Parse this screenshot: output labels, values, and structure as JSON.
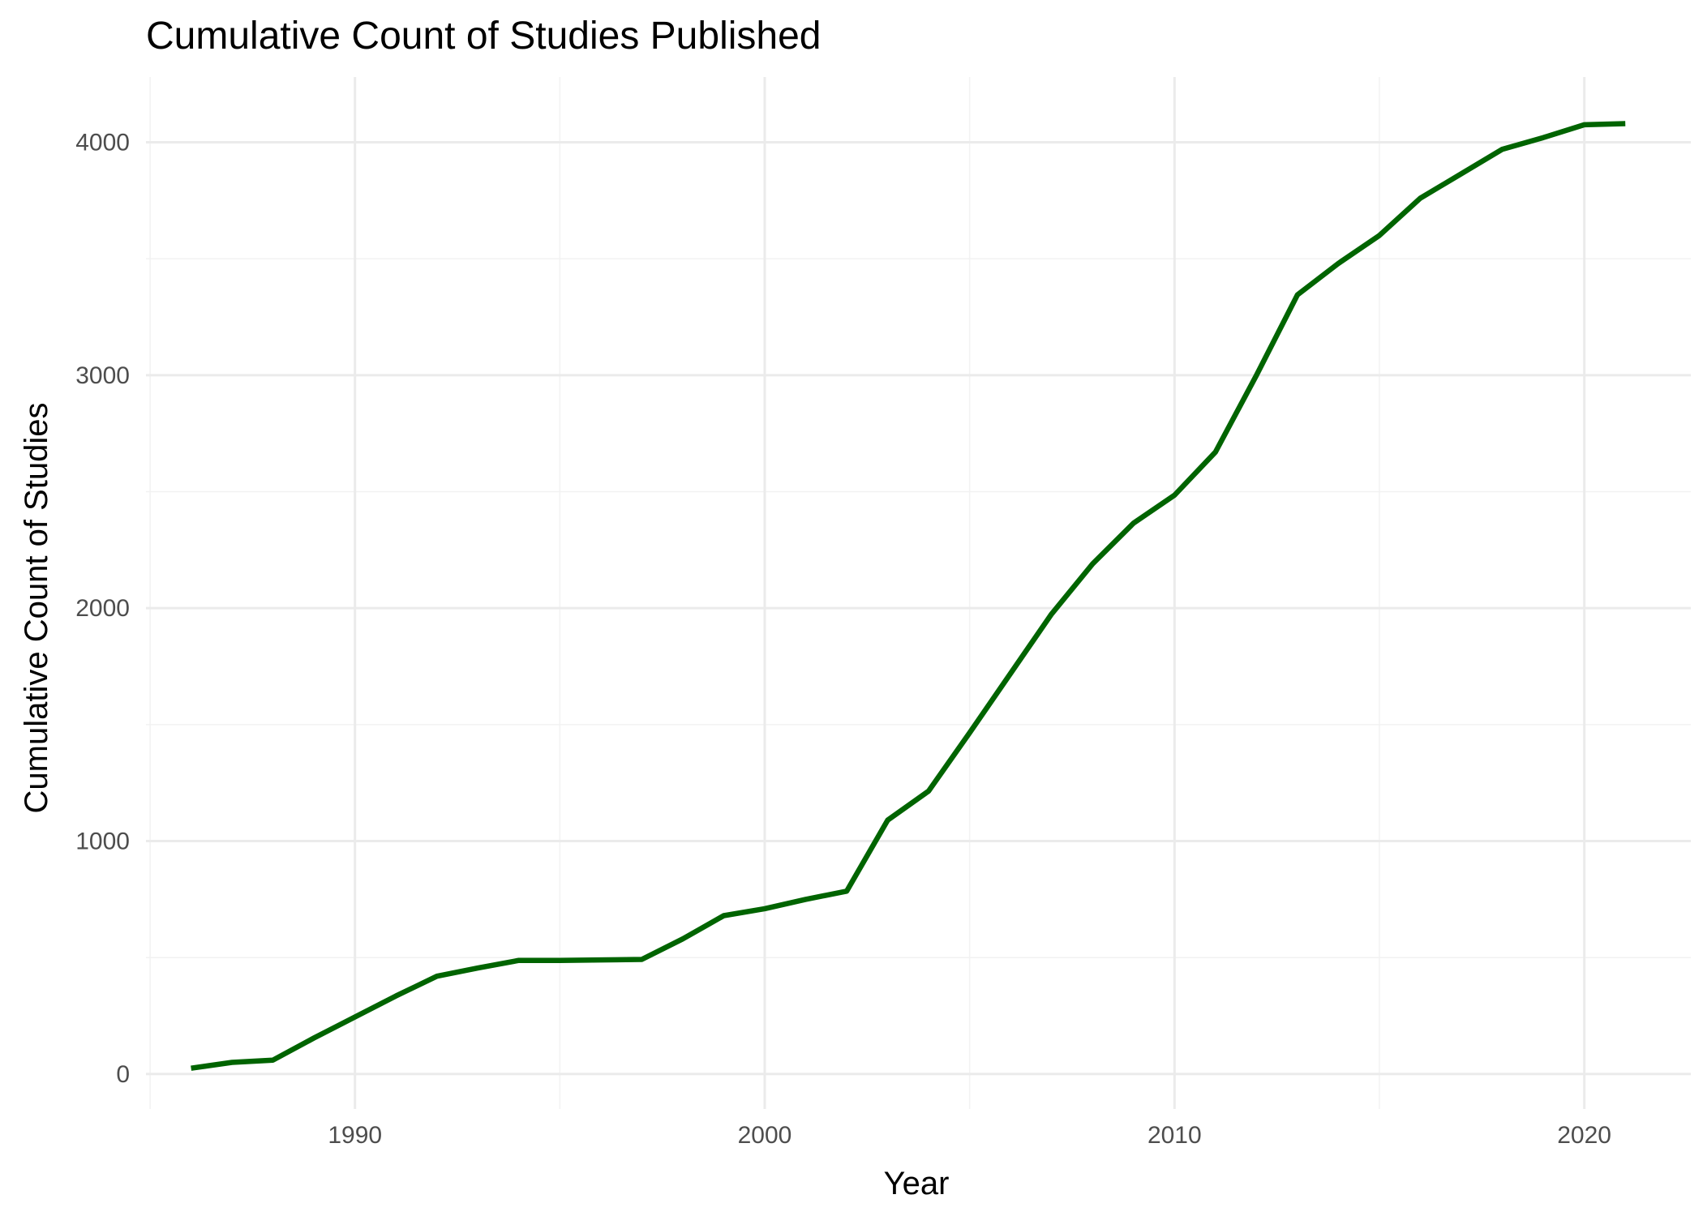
{
  "chart_data": {
    "type": "line",
    "title": "Cumulative Count of Studies Published",
    "xlabel": "Year",
    "ylabel": "Cumulative Count of Studies",
    "xlim": [
      1984.9,
      2022.6
    ],
    "ylim": [
      -150,
      4280
    ],
    "x_ticks": [
      1990,
      2000,
      2010,
      2020
    ],
    "x_minor": [
      1985,
      1995,
      2005,
      2015
    ],
    "y_ticks": [
      0,
      1000,
      2000,
      3000,
      4000
    ],
    "y_minor": [
      500,
      1500,
      2500,
      3500
    ],
    "grid": true,
    "legend": "none",
    "line_color": "#006400",
    "x": [
      1986,
      1987,
      1988,
      1989,
      1990,
      1991,
      1992,
      1993,
      1994,
      1995,
      1996,
      1997,
      1998,
      1999,
      2000,
      2001,
      2002,
      2003,
      2004,
      2005,
      2006,
      2007,
      2008,
      2009,
      2010,
      2011,
      2012,
      2013,
      2014,
      2015,
      2016,
      2017,
      2018,
      2019,
      2020,
      2021
    ],
    "values": [
      25,
      50,
      60,
      155,
      245,
      335,
      420,
      455,
      488,
      488,
      490,
      492,
      580,
      680,
      710,
      750,
      785,
      1090,
      1215,
      1465,
      1720,
      1975,
      2190,
      2365,
      2485,
      2670,
      3000,
      3345,
      3480,
      3600,
      3760,
      3865,
      3970,
      4020,
      4075,
      4080
    ]
  }
}
